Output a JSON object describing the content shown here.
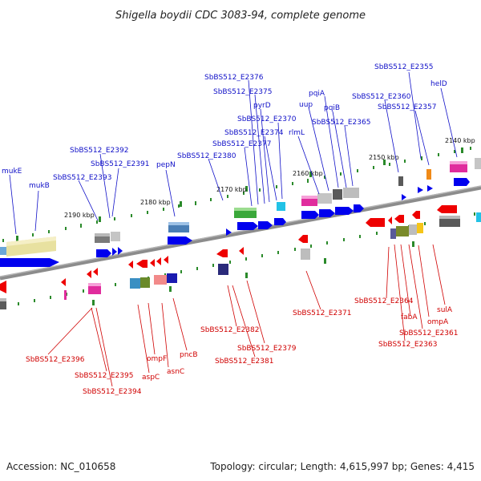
{
  "title": "Shigella boydii CDC 3083-94, complete genome",
  "accession_text": "Accession: NC_010658",
  "summary_text": "Topology: circular; Length: 4,615,997 bp; Genes: 4,415",
  "kbp_ticks": [
    "2140 kbp",
    "2150 kbp",
    "2160 kbp",
    "2170 kbp",
    "2180 kbp",
    "2190 kbp"
  ],
  "colors": {
    "forward_label": "#1010c8",
    "reverse_label": "#d00000",
    "backbone": "#8c8c8c",
    "forward_gene": "#0000ee",
    "reverse_gene": "#ee0000",
    "tick": "#2a8a2a"
  },
  "forward_labels": [
    "helD",
    "SbBS512_E2355",
    "SbBS512_E2357",
    "SbBS512_E2360",
    "SbBS512_E2365",
    "pqiB",
    "pqiA",
    "uup",
    "rlmL",
    "SbBS512_E2370",
    "SbBS512_E2374",
    "pyrD",
    "SbBS512_E2375",
    "SbBS512_E2376",
    "SbBS512_E2377",
    "SbBS512_E2380",
    "pepN",
    "SbBS512_E2391",
    "SbBS512_E2392",
    "SbBS512_E2393",
    "mukB",
    "mukE"
  ],
  "reverse_labels": [
    "sulA",
    "ompA",
    "SbBS512_E2361",
    "fabA",
    "SbBS512_E2363",
    "SbBS512_E2364",
    "SbBS512_E2371",
    "SbBS512_E2379",
    "SbBS512_E2381",
    "SbBS512_E2382",
    "pncB",
    "asnC",
    "ompF",
    "aspC",
    "SbBS512_E2394",
    "SbBS512_E2395",
    "SbBS512_E2396"
  ]
}
